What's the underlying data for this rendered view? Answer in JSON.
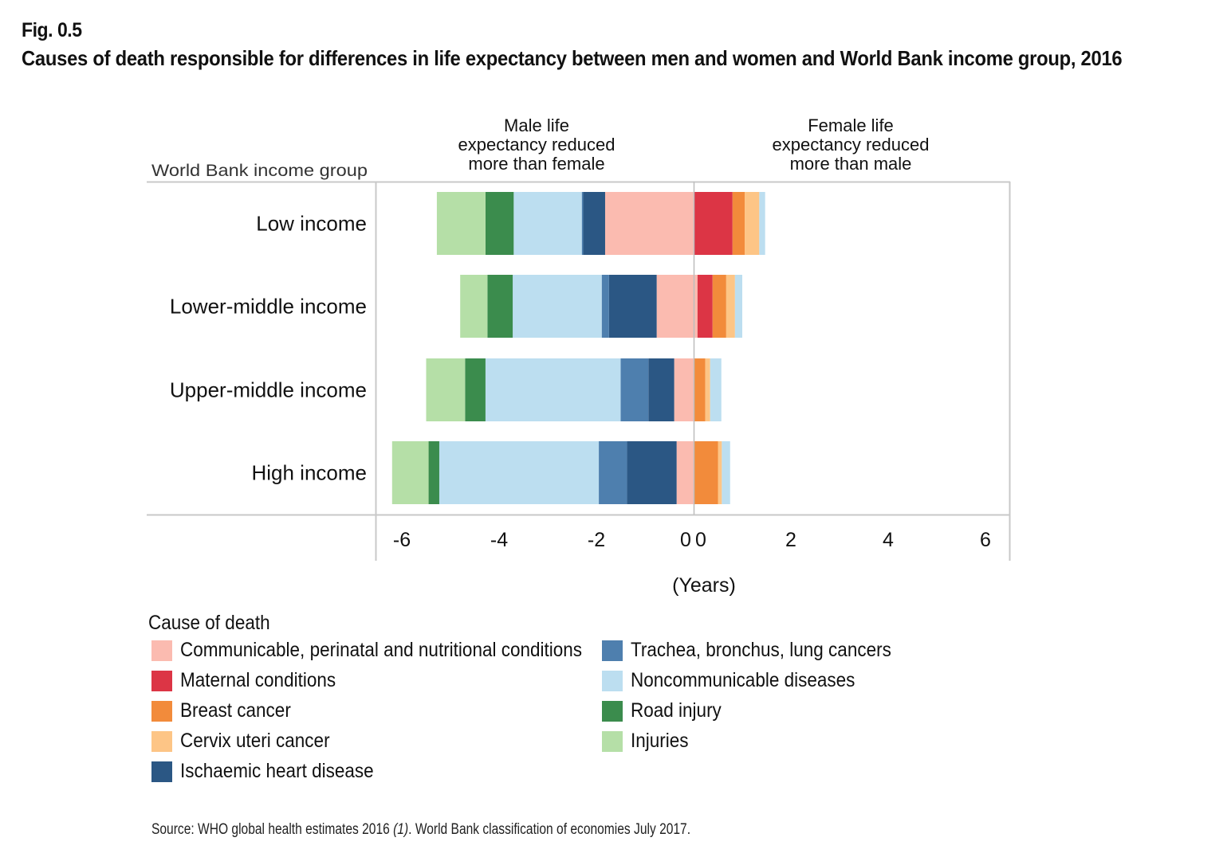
{
  "figure": {
    "number": "Fig. 0.5",
    "title": "Causes of death responsible for differences in life expectancy between men and women and World Bank income group, 2016",
    "source_prefix": "Source: WHO global health estimates 2016 ",
    "source_ref": "(1)",
    "source_suffix": ". World Bank classification of economies July 2017."
  },
  "chart_data": {
    "type": "bar",
    "orientation": "horizontal-diverging-stacked",
    "row_axis_title": "World Bank income group",
    "header_left": [
      "Male life",
      "expectancy reduced",
      "more than female"
    ],
    "header_right": [
      "Female life",
      "expectancy reduced",
      "more than male"
    ],
    "xlabel": "(Years)",
    "xlim": [
      -6.5,
      6.5
    ],
    "x_ticks_left": [
      "-6",
      "-4",
      "-2",
      "0"
    ],
    "x_ticks_right": [
      "0",
      "2",
      "4",
      "6"
    ],
    "categories": [
      "Low income",
      "Lower-middle income",
      "Upper-middle income",
      "High income"
    ],
    "series": [
      {
        "name": "Communicable, perinatal and nutritional conditions",
        "color": "#FBBBB0",
        "male": [
          1.82,
          0.76,
          0.4,
          0.35
        ],
        "female": [
          0.0,
          0.08,
          0.0,
          0.0
        ]
      },
      {
        "name": "Maternal conditions",
        "color": "#DC3545",
        "male": [
          0.0,
          0.0,
          0.0,
          0.0
        ],
        "female": [
          0.8,
          0.31,
          0.0,
          0.0
        ]
      },
      {
        "name": "Breast cancer",
        "color": "#F28B3B",
        "male": [
          0.0,
          0.0,
          0.0,
          0.0
        ],
        "female": [
          0.25,
          0.28,
          0.24,
          0.5
        ]
      },
      {
        "name": "Cervix uteri cancer",
        "color": "#FDC586",
        "male": [
          0.0,
          0.0,
          0.0,
          0.0
        ],
        "female": [
          0.3,
          0.18,
          0.1,
          0.08
        ]
      },
      {
        "name": "Ischaemic heart disease",
        "color": "#2B5784",
        "male": [
          0.45,
          0.98,
          0.53,
          1.02
        ],
        "female": [
          0.0,
          0.0,
          0.0,
          0.0
        ]
      },
      {
        "name": "Trachea, bronchus, lung cancers",
        "color": "#4E7FAE",
        "male": [
          0.03,
          0.15,
          0.57,
          0.58
        ],
        "female": [
          0.0,
          0.0,
          0.0,
          0.0
        ]
      },
      {
        "name": "Noncommunicable diseases",
        "color": "#BCDEF0",
        "male": [
          1.4,
          1.83,
          2.78,
          3.28
        ],
        "female": [
          0.12,
          0.15,
          0.23,
          0.17
        ]
      },
      {
        "name": "Road injury",
        "color": "#3B8C4D",
        "male": [
          0.58,
          0.52,
          0.42,
          0.22
        ],
        "female": [
          0.0,
          0.0,
          0.0,
          0.0
        ]
      },
      {
        "name": "Injuries",
        "color": "#B5DFA7",
        "male": [
          1.0,
          0.56,
          0.8,
          0.75
        ],
        "female": [
          0.0,
          0.0,
          0.0,
          0.0
        ]
      }
    ],
    "legend_title": "Cause of death",
    "legend_placement": "bottom",
    "grid": false
  }
}
